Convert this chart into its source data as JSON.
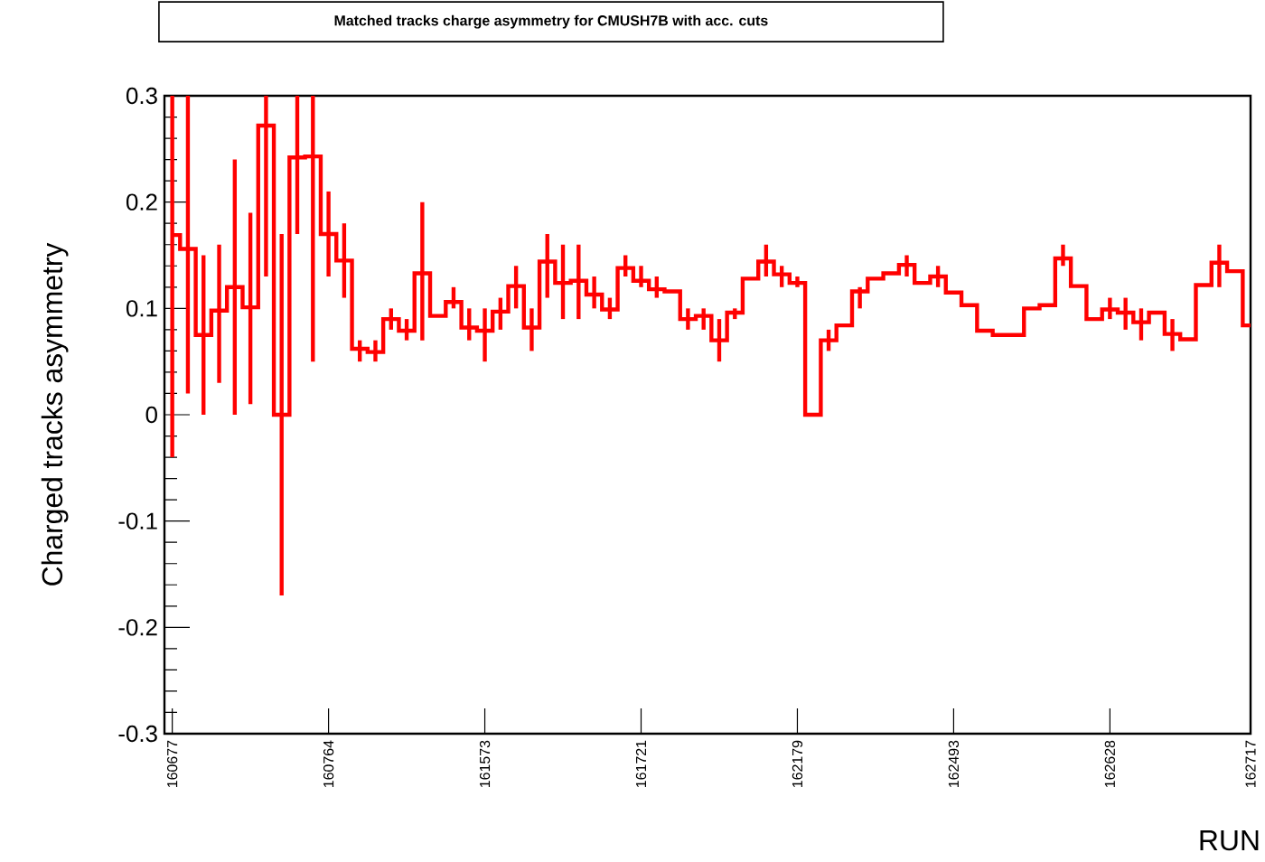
{
  "chart_data": {
    "type": "step",
    "title": "Matched tracks charge asymmetry for CMUSH7B with acc. cuts",
    "xlabel": "RUN",
    "ylabel": "Charged tracks asymmetry",
    "categories": [
      "160677",
      null,
      null,
      null,
      null,
      null,
      null,
      null,
      null,
      null,
      "160764",
      null,
      null,
      null,
      null,
      null,
      null,
      null,
      null,
      null,
      "161573",
      null,
      null,
      null,
      null,
      null,
      null,
      null,
      null,
      null,
      "161721",
      null,
      null,
      null,
      null,
      null,
      null,
      null,
      null,
      null,
      "162179",
      null,
      null,
      null,
      null,
      null,
      null,
      null,
      null,
      null,
      "162493",
      null,
      null,
      null,
      null,
      null,
      null,
      null,
      null,
      null,
      "162628",
      null,
      null,
      null,
      null,
      null,
      null,
      null,
      null,
      "162717"
    ],
    "values": [
      0.169,
      0.156,
      0.075,
      0.098,
      0.12,
      0.101,
      0.272,
      0.0,
      0.242,
      0.243,
      0.17,
      0.145,
      0.062,
      0.059,
      0.09,
      0.079,
      0.133,
      0.093,
      0.106,
      0.082,
      0.079,
      0.097,
      0.121,
      0.082,
      0.144,
      0.124,
      0.126,
      0.113,
      0.099,
      0.138,
      0.126,
      0.118,
      0.116,
      0.09,
      0.093,
      0.07,
      0.096,
      0.128,
      0.144,
      0.132,
      0.124,
      0.0,
      0.07,
      0.084,
      0.116,
      0.128,
      0.133,
      0.141,
      0.124,
      0.13,
      0.115,
      0.103,
      0.079,
      0.075,
      0.075,
      0.1,
      0.103,
      0.147,
      0.121,
      0.09,
      0.099,
      0.096,
      0.087,
      0.096,
      0.076,
      0.071,
      0.122,
      0.143,
      0.135,
      0.084
    ],
    "errors": [
      [
        -0.04,
        0.3
      ],
      [
        0.02,
        0.3
      ],
      [
        0.0,
        0.15
      ],
      [
        0.03,
        0.16
      ],
      [
        0.0,
        0.24
      ],
      [
        0.01,
        0.19
      ],
      [
        0.13,
        0.3
      ],
      [
        -0.17,
        0.17
      ],
      [
        0.17,
        0.3
      ],
      [
        0.05,
        0.3
      ],
      [
        0.13,
        0.21
      ],
      [
        0.11,
        0.18
      ],
      [
        0.05,
        0.07
      ],
      [
        0.05,
        0.07
      ],
      [
        0.08,
        0.1
      ],
      [
        0.07,
        0.09
      ],
      [
        0.07,
        0.2
      ],
      null,
      [
        0.1,
        0.12
      ],
      [
        0.07,
        0.1
      ],
      [
        0.05,
        0.1
      ],
      [
        0.08,
        0.11
      ],
      [
        0.1,
        0.14
      ],
      [
        0.06,
        0.1
      ],
      [
        0.11,
        0.17
      ],
      [
        0.09,
        0.16
      ],
      [
        0.09,
        0.16
      ],
      [
        0.1,
        0.13
      ],
      [
        0.09,
        0.11
      ],
      [
        0.13,
        0.15
      ],
      [
        0.12,
        0.14
      ],
      [
        0.11,
        0.13
      ],
      null,
      [
        0.08,
        0.1
      ],
      [
        0.08,
        0.1
      ],
      [
        0.05,
        0.09
      ],
      [
        0.09,
        0.1
      ],
      null,
      [
        0.13,
        0.16
      ],
      [
        0.12,
        0.14
      ],
      [
        0.12,
        0.13
      ],
      null,
      [
        0.06,
        0.08
      ],
      null,
      [
        0.1,
        0.12
      ],
      null,
      null,
      [
        0.13,
        0.15
      ],
      null,
      [
        0.12,
        0.14
      ],
      null,
      null,
      null,
      null,
      null,
      null,
      null,
      [
        0.14,
        0.16
      ],
      null,
      null,
      [
        0.09,
        0.11
      ],
      [
        0.08,
        0.11
      ],
      [
        0.07,
        0.1
      ],
      null,
      [
        0.06,
        0.09
      ],
      null,
      null,
      [
        0.12,
        0.16
      ],
      null,
      null
    ],
    "color": "#ff0000",
    "ylim": [
      -0.3,
      0.3
    ],
    "yticks": [
      -0.3,
      -0.2,
      -0.1,
      0,
      0.1,
      0.2,
      0.3
    ],
    "grid": false
  }
}
